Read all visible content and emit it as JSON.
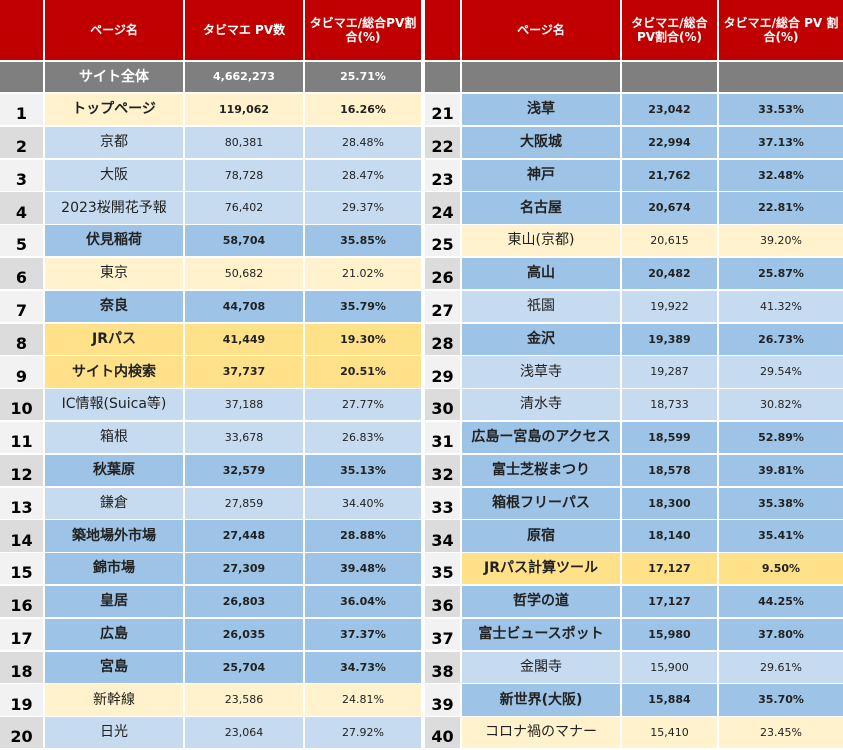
{
  "header": {
    "left_columns": [
      "ページ名",
      "タビマエ PV数",
      "タビマエ/総合PV割合(%)"
    ],
    "right_columns": [
      "ページ名",
      "タビマエ/総合 PV割合(%)",
      "タビマエ/総合 PV 割合(%)"
    ]
  },
  "total": {
    "label": "サイト全体",
    "pv": "4,662,273",
    "ratio": "25.71%"
  },
  "rows": [
    [
      1,
      "トップページ",
      "119,062",
      "16.26%"
    ],
    [
      2,
      "京都",
      "80,381",
      "28.48%"
    ],
    [
      3,
      "大阪",
      "78,728",
      "28.47%"
    ],
    [
      4,
      "2023桜開花予報",
      "76,402",
      "29.37%"
    ],
    [
      5,
      "伏見稲荷",
      "58,704",
      "35.85%"
    ],
    [
      6,
      "東京",
      "50,682",
      "21.02%"
    ],
    [
      7,
      "奈良",
      "44,708",
      "35.79%"
    ],
    [
      8,
      "JRパス",
      "41,449",
      "19.30%"
    ],
    [
      9,
      "サイト内検索",
      "37,737",
      "20.51%"
    ],
    [
      10,
      "IC情報(Suica等)",
      "37,188",
      "27.77%"
    ],
    [
      11,
      "箱根",
      "33,678",
      "26.83%"
    ],
    [
      12,
      "秋葉原",
      "32,579",
      "35.13%"
    ],
    [
      13,
      "鎌倉",
      "27,859",
      "34.40%"
    ],
    [
      14,
      "築地場外市場",
      "27,448",
      "28.88%"
    ],
    [
      15,
      "錦市場",
      "27,309",
      "39.48%"
    ],
    [
      16,
      "皇居",
      "26,803",
      "36.04%"
    ],
    [
      17,
      "広島",
      "26,035",
      "37.37%"
    ],
    [
      18,
      "宮島",
      "25,704",
      "34.73%"
    ],
    [
      19,
      "新幹線",
      "23,586",
      "24.81%"
    ],
    [
      20,
      "日光",
      "23,064",
      "27.92%"
    ],
    [
      21,
      "浅草",
      "23,042",
      "33.53%"
    ],
    [
      22,
      "大阪城",
      "22,994",
      "37.13%"
    ],
    [
      23,
      "神戸",
      "21,762",
      "32.48%"
    ],
    [
      24,
      "名古屋",
      "20,674",
      "22.81%"
    ],
    [
      25,
      "東山(京都)",
      "20,615",
      "39.20%"
    ],
    [
      26,
      "高山",
      "20,482",
      "25.87%"
    ],
    [
      27,
      "祇園",
      "19,922",
      "41.32%"
    ],
    [
      28,
      "金沢",
      "19,389",
      "26.73%"
    ],
    [
      29,
      "浅草寺",
      "19,287",
      "29.54%"
    ],
    [
      30,
      "清水寺",
      "18,733",
      "30.82%"
    ],
    [
      31,
      "広島ー宮島のアクセス",
      "18,599",
      "52.89%"
    ],
    [
      32,
      "富士芝桜まつり",
      "18,578",
      "39.81%"
    ],
    [
      33,
      "箱根フリーパス",
      "18,300",
      "35.38%"
    ],
    [
      34,
      "原宿",
      "18,140",
      "35.41%"
    ],
    [
      35,
      "JRパス計算ツール",
      "17,127",
      "9.50%"
    ],
    [
      36,
      "哲学の道",
      "17,127",
      "44.25%"
    ],
    [
      37,
      "富士ビュースポット",
      "15,980",
      "37.80%"
    ],
    [
      38,
      "金閣寺",
      "15,900",
      "29.61%"
    ],
    [
      39,
      "新世界(大阪)",
      "15,884",
      "35.70%"
    ],
    [
      40,
      "コロナ禍のマナー",
      "15,410",
      "23.45%"
    ]
  ]
}
